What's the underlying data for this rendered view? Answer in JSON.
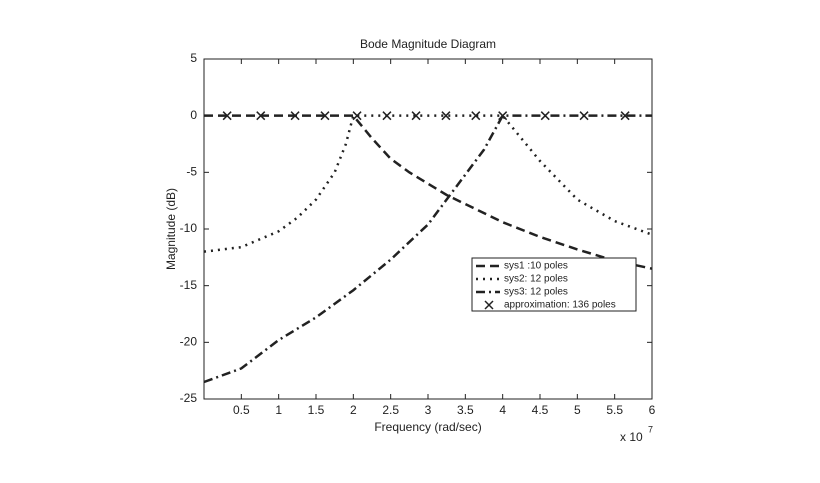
{
  "chart_data": {
    "type": "line",
    "title": "Bode Magnitude Diagram",
    "x_label": "Frequency (rad/sec)",
    "y_label": "Magnitude (dB)",
    "x_multiplier": {
      "base": "x 10",
      "exponent": "7"
    },
    "xlim": [
      0,
      6
    ],
    "ylim": [
      -25,
      5
    ],
    "xticks": [
      0.5,
      1,
      1.5,
      2,
      2.5,
      3,
      3.5,
      4,
      4.5,
      5,
      5.5,
      6
    ],
    "yticks": [
      -25,
      -20,
      -15,
      -10,
      -5,
      0,
      5
    ],
    "grid": false,
    "legend": "lower-right",
    "series": [
      {
        "name": "sys1 :10 poles",
        "color": "#222",
        "style": "dashed",
        "x": [
          0,
          0.5,
          1,
          1.5,
          2,
          2.25,
          2.5,
          2.75,
          3,
          3.25,
          3.5,
          4,
          4.5,
          5,
          5.5,
          6
        ],
        "values": [
          0,
          0,
          0,
          0,
          0,
          -2,
          -3.8,
          -5,
          -6,
          -7,
          -7.8,
          -9.4,
          -10.7,
          -11.8,
          -12.8,
          -13.5
        ]
      },
      {
        "name": "sys2: 12 poles",
        "color": "#222",
        "style": "dotted",
        "x": [
          0,
          0.5,
          1,
          1.25,
          1.5,
          1.75,
          1.9,
          2,
          3,
          4,
          4.25,
          4.5,
          5,
          5.5,
          6
        ],
        "values": [
          -12,
          -11.6,
          -10.2,
          -9,
          -7.4,
          -5,
          -2.5,
          0,
          0,
          0,
          -2,
          -4,
          -7.4,
          -9.3,
          -10.5
        ]
      },
      {
        "name": "sys3: 12 poles",
        "color": "#222",
        "style": "dashdot",
        "x": [
          0,
          0.5,
          1,
          1.5,
          2,
          2.5,
          3,
          3.5,
          3.75,
          4,
          5,
          6
        ],
        "values": [
          -23.5,
          -22.3,
          -19.8,
          -17.8,
          -15.4,
          -12.7,
          -9.6,
          -5.2,
          -3,
          0,
          0,
          0
        ]
      },
      {
        "name": "approximation: 136 poles",
        "color": "#222",
        "style": "markers",
        "x": [
          0.31,
          0.76,
          1.22,
          1.62,
          2.05,
          2.45,
          2.84,
          3.24,
          3.64,
          4.0,
          4.57,
          5.09,
          5.64
        ],
        "values": [
          0,
          0,
          0,
          0,
          0,
          0,
          0,
          0,
          0,
          0,
          0,
          0,
          0
        ]
      }
    ]
  }
}
